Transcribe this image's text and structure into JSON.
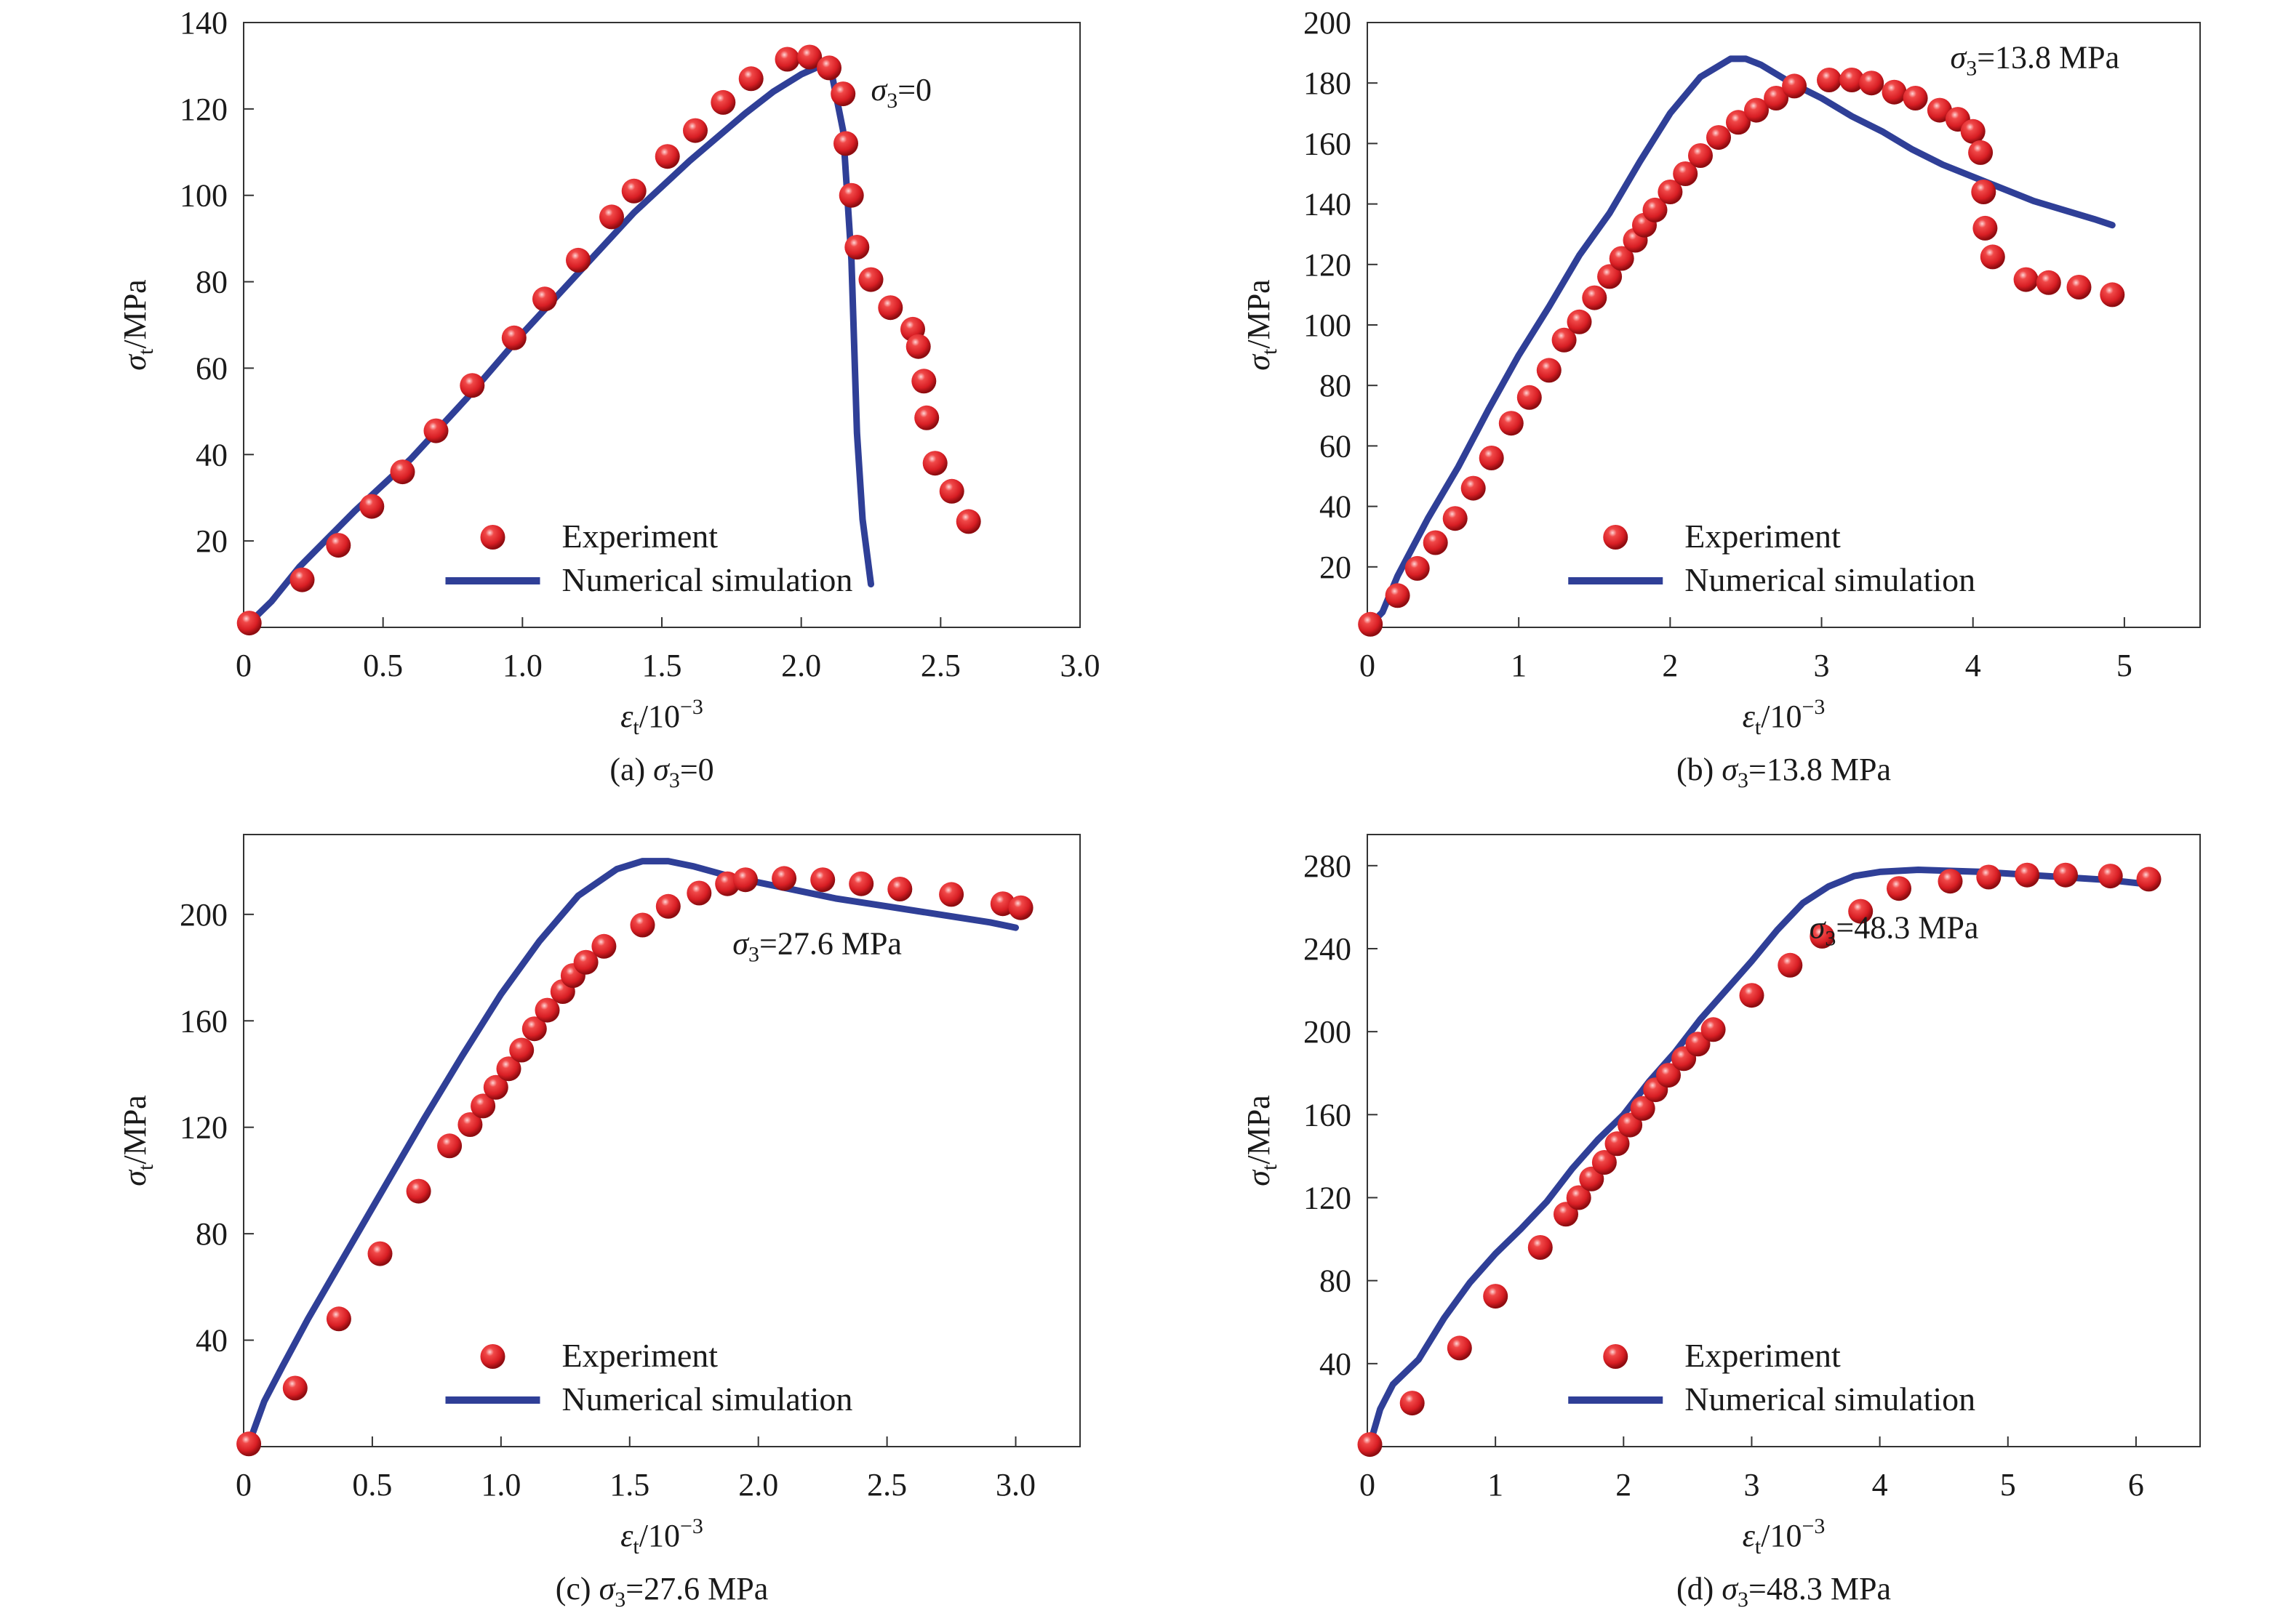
{
  "colors": {
    "experiment": "#d81e24",
    "simulation": "#2f3f97",
    "axis": "#333333"
  },
  "chart_data": [
    {
      "id": "a",
      "type": "scatter+line",
      "caption": {
        "prefix": "(a) ",
        "sym": "σ",
        "sub": "3",
        "rest": "=0"
      },
      "annotation": {
        "sym": "σ",
        "sub": "3",
        "rest": "=0"
      },
      "xlabel": {
        "sym": "ε",
        "sub": "t",
        "rest": "/10",
        "sup": "−3"
      },
      "ylabel": {
        "sym": "σ",
        "sub": "t",
        "rest": "/MPa"
      },
      "xlim": [
        0,
        3.0
      ],
      "ylim": [
        0,
        140
      ],
      "xticks": [
        "0",
        "0.5",
        "1.0",
        "1.5",
        "2.0",
        "2.5",
        "3.0"
      ],
      "yticks": [
        "20",
        "40",
        "60",
        "80",
        "100",
        "120",
        "140"
      ],
      "legend": {
        "experiment": "Experiment",
        "simulation": "Numerical simulation",
        "position": "bottom-center"
      },
      "experiment": [
        [
          0.02,
          1
        ],
        [
          0.21,
          11
        ],
        [
          0.34,
          19
        ],
        [
          0.46,
          28
        ],
        [
          0.57,
          36
        ],
        [
          0.69,
          45.5
        ],
        [
          0.82,
          56
        ],
        [
          0.97,
          67
        ],
        [
          1.08,
          76
        ],
        [
          1.2,
          85
        ],
        [
          1.32,
          95
        ],
        [
          1.4,
          101
        ],
        [
          1.52,
          109
        ],
        [
          1.62,
          115
        ],
        [
          1.72,
          121.5
        ],
        [
          1.82,
          127
        ],
        [
          1.95,
          131.5
        ],
        [
          2.03,
          132
        ],
        [
          2.1,
          129.5
        ],
        [
          2.15,
          123.5
        ],
        [
          2.16,
          112
        ],
        [
          2.18,
          100
        ],
        [
          2.2,
          88
        ],
        [
          2.25,
          80.5
        ],
        [
          2.32,
          74
        ],
        [
          2.4,
          69
        ],
        [
          2.42,
          65
        ],
        [
          2.44,
          57
        ],
        [
          2.45,
          48.5
        ],
        [
          2.48,
          38
        ],
        [
          2.54,
          31.5
        ],
        [
          2.6,
          24.5
        ]
      ],
      "simulation": [
        [
          0.02,
          1
        ],
        [
          0.1,
          6
        ],
        [
          0.2,
          14
        ],
        [
          0.4,
          27
        ],
        [
          0.6,
          39
        ],
        [
          0.8,
          53
        ],
        [
          1.0,
          68
        ],
        [
          1.2,
          82
        ],
        [
          1.4,
          96
        ],
        [
          1.6,
          108
        ],
        [
          1.8,
          119
        ],
        [
          1.9,
          124
        ],
        [
          2.0,
          128
        ],
        [
          2.07,
          130
        ],
        [
          2.11,
          128
        ],
        [
          2.15,
          115
        ],
        [
          2.18,
          85
        ],
        [
          2.2,
          45
        ],
        [
          2.22,
          25
        ],
        [
          2.25,
          10
        ]
      ]
    },
    {
      "id": "b",
      "type": "scatter+line",
      "caption": {
        "prefix": "(b) ",
        "sym": "σ",
        "sub": "3",
        "rest": "=13.8 MPa"
      },
      "annotation": {
        "sym": "σ",
        "sub": "3",
        "rest": "=13.8 MPa"
      },
      "xlabel": {
        "sym": "ε",
        "sub": "t",
        "rest": "/10",
        "sup": "−3"
      },
      "ylabel": {
        "sym": "σ",
        "sub": "t",
        "rest": "/MPa"
      },
      "xlim": [
        0,
        5.5
      ],
      "ylim": [
        0,
        200
      ],
      "xticks": [
        "0",
        "1",
        "2",
        "3",
        "4",
        "5"
      ],
      "yticks": [
        "20",
        "40",
        "60",
        "80",
        "100",
        "120",
        "140",
        "160",
        "180",
        "200"
      ],
      "legend": {
        "experiment": "Experiment",
        "simulation": "Numerical simulation",
        "position": "bottom-center"
      },
      "experiment": [
        [
          0.02,
          1
        ],
        [
          0.2,
          10.5
        ],
        [
          0.33,
          19.5
        ],
        [
          0.45,
          28
        ],
        [
          0.58,
          36
        ],
        [
          0.7,
          46
        ],
        [
          0.82,
          56
        ],
        [
          0.95,
          67.5
        ],
        [
          1.07,
          76
        ],
        [
          1.2,
          85
        ],
        [
          1.3,
          95
        ],
        [
          1.4,
          101
        ],
        [
          1.5,
          109
        ],
        [
          1.6,
          116
        ],
        [
          1.68,
          122
        ],
        [
          1.77,
          128
        ],
        [
          1.83,
          133
        ],
        [
          1.9,
          138
        ],
        [
          2.0,
          144
        ],
        [
          2.1,
          150
        ],
        [
          2.2,
          156
        ],
        [
          2.32,
          162
        ],
        [
          2.45,
          167
        ],
        [
          2.57,
          171
        ],
        [
          2.7,
          175
        ],
        [
          2.82,
          179
        ],
        [
          3.05,
          181
        ],
        [
          3.2,
          181
        ],
        [
          3.33,
          180
        ],
        [
          3.48,
          177
        ],
        [
          3.62,
          175
        ],
        [
          3.78,
          171
        ],
        [
          3.9,
          168
        ],
        [
          4.0,
          164
        ],
        [
          4.05,
          157
        ],
        [
          4.07,
          144
        ],
        [
          4.08,
          132
        ],
        [
          4.13,
          122.5
        ],
        [
          4.35,
          115
        ],
        [
          4.5,
          114
        ],
        [
          4.7,
          112.5
        ],
        [
          4.92,
          110
        ]
      ],
      "simulation": [
        [
          0.02,
          1
        ],
        [
          0.1,
          5
        ],
        [
          0.2,
          17
        ],
        [
          0.4,
          36
        ],
        [
          0.6,
          53
        ],
        [
          0.8,
          72
        ],
        [
          1.0,
          90
        ],
        [
          1.2,
          106
        ],
        [
          1.4,
          123
        ],
        [
          1.6,
          137
        ],
        [
          1.8,
          154
        ],
        [
          2.0,
          170
        ],
        [
          2.2,
          182
        ],
        [
          2.4,
          188
        ],
        [
          2.5,
          188
        ],
        [
          2.6,
          186
        ],
        [
          2.8,
          180
        ],
        [
          3.0,
          175
        ],
        [
          3.2,
          169
        ],
        [
          3.4,
          164
        ],
        [
          3.6,
          158
        ],
        [
          3.8,
          153
        ],
        [
          4.0,
          149
        ],
        [
          4.2,
          145
        ],
        [
          4.4,
          141
        ],
        [
          4.6,
          138
        ],
        [
          4.8,
          135
        ],
        [
          4.92,
          133
        ]
      ]
    },
    {
      "id": "c",
      "type": "scatter+line",
      "caption": {
        "prefix": "(c) ",
        "sym": "σ",
        "sub": "3",
        "rest": "=27.6 MPa"
      },
      "annotation": {
        "sym": "σ",
        "sub": "3",
        "rest": "=27.6 MPa"
      },
      "xlabel": {
        "sym": "ε",
        "sub": "t",
        "rest": "/10",
        "sup": "−3"
      },
      "ylabel": {
        "sym": "σ",
        "sub": "t",
        "rest": "/MPa"
      },
      "xlim": [
        0,
        3.25
      ],
      "ylim": [
        0,
        230
      ],
      "xticks": [
        "0",
        "0.5",
        "1.0",
        "1.5",
        "2.0",
        "2.5",
        "3.0"
      ],
      "yticks": [
        "40",
        "80",
        "120",
        "160",
        "200"
      ],
      "legend": {
        "experiment": "Experiment",
        "simulation": "Numerical simulation",
        "position": "bottom-center"
      },
      "experiment": [
        [
          0.02,
          1
        ],
        [
          0.2,
          22
        ],
        [
          0.37,
          48
        ],
        [
          0.53,
          72.5
        ],
        [
          0.68,
          96
        ],
        [
          0.8,
          113
        ],
        [
          0.88,
          121
        ],
        [
          0.93,
          128
        ],
        [
          0.98,
          135
        ],
        [
          1.03,
          142
        ],
        [
          1.08,
          149
        ],
        [
          1.13,
          157
        ],
        [
          1.18,
          164
        ],
        [
          1.24,
          171
        ],
        [
          1.28,
          177
        ],
        [
          1.33,
          182
        ],
        [
          1.4,
          188
        ],
        [
          1.55,
          196
        ],
        [
          1.65,
          203
        ],
        [
          1.77,
          208
        ],
        [
          1.88,
          211.5
        ],
        [
          1.95,
          213
        ],
        [
          2.1,
          213.5
        ],
        [
          2.25,
          213
        ],
        [
          2.4,
          211.5
        ],
        [
          2.55,
          209.5
        ],
        [
          2.75,
          207.5
        ],
        [
          2.95,
          204
        ],
        [
          3.02,
          202.5
        ]
      ],
      "simulation": [
        [
          0.02,
          1
        ],
        [
          0.08,
          17
        ],
        [
          0.15,
          30
        ],
        [
          0.25,
          48
        ],
        [
          0.4,
          73
        ],
        [
          0.55,
          98
        ],
        [
          0.7,
          123
        ],
        [
          0.85,
          147
        ],
        [
          1.0,
          170
        ],
        [
          1.15,
          190
        ],
        [
          1.3,
          207
        ],
        [
          1.45,
          217
        ],
        [
          1.55,
          220
        ],
        [
          1.65,
          220
        ],
        [
          1.75,
          218
        ],
        [
          1.9,
          214
        ],
        [
          2.1,
          210
        ],
        [
          2.3,
          206
        ],
        [
          2.5,
          203
        ],
        [
          2.7,
          200
        ],
        [
          2.9,
          197
        ],
        [
          3.0,
          195
        ]
      ]
    },
    {
      "id": "d",
      "type": "scatter+line",
      "caption": {
        "prefix": "(d) ",
        "sym": "σ",
        "sub": "3",
        "rest": "=48.3 MPa"
      },
      "annotation": {
        "sym": "σ",
        "sub": "3",
        "rest": "=48.3 MPa"
      },
      "xlabel": {
        "sym": "ε",
        "sub": "t",
        "rest": "/10",
        "sup": "−3"
      },
      "ylabel": {
        "sym": "σ",
        "sub": "t",
        "rest": "/MPa"
      },
      "xlim": [
        0,
        6.5
      ],
      "ylim": [
        0,
        295
      ],
      "xticks": [
        "0",
        "1",
        "2",
        "3",
        "4",
        "5",
        "6"
      ],
      "yticks": [
        "40",
        "80",
        "120",
        "160",
        "200",
        "240",
        "280"
      ],
      "legend": {
        "experiment": "Experiment",
        "simulation": "Numerical simulation",
        "position": "bottom-center"
      },
      "experiment": [
        [
          0.02,
          1
        ],
        [
          0.35,
          21
        ],
        [
          0.72,
          47.5
        ],
        [
          1.0,
          72.5
        ],
        [
          1.35,
          96
        ],
        [
          1.55,
          112
        ],
        [
          1.65,
          120
        ],
        [
          1.75,
          129
        ],
        [
          1.85,
          137
        ],
        [
          1.95,
          146
        ],
        [
          2.05,
          155
        ],
        [
          2.15,
          163
        ],
        [
          2.25,
          172
        ],
        [
          2.35,
          179
        ],
        [
          2.47,
          187
        ],
        [
          2.58,
          194
        ],
        [
          2.7,
          201
        ],
        [
          3.0,
          217.5
        ],
        [
          3.3,
          232
        ],
        [
          3.55,
          246
        ],
        [
          3.85,
          258
        ],
        [
          4.15,
          269
        ],
        [
          4.55,
          272.5
        ],
        [
          4.85,
          274.5
        ],
        [
          5.15,
          275.5
        ],
        [
          5.45,
          275.5
        ],
        [
          5.8,
          275
        ],
        [
          6.1,
          273.5
        ]
      ],
      "simulation": [
        [
          0.02,
          1
        ],
        [
          0.1,
          18
        ],
        [
          0.2,
          30
        ],
        [
          0.4,
          42
        ],
        [
          0.6,
          62
        ],
        [
          0.8,
          79
        ],
        [
          1.0,
          93
        ],
        [
          1.2,
          105
        ],
        [
          1.4,
          118
        ],
        [
          1.6,
          134
        ],
        [
          1.8,
          148
        ],
        [
          2.0,
          160
        ],
        [
          2.2,
          176
        ],
        [
          2.4,
          190
        ],
        [
          2.6,
          206
        ],
        [
          2.8,
          220
        ],
        [
          3.0,
          234
        ],
        [
          3.2,
          249
        ],
        [
          3.4,
          262
        ],
        [
          3.6,
          270
        ],
        [
          3.8,
          275
        ],
        [
          4.0,
          277
        ],
        [
          4.3,
          278
        ],
        [
          4.8,
          277
        ],
        [
          5.3,
          275
        ],
        [
          5.8,
          273
        ],
        [
          6.1,
          271
        ]
      ]
    }
  ]
}
